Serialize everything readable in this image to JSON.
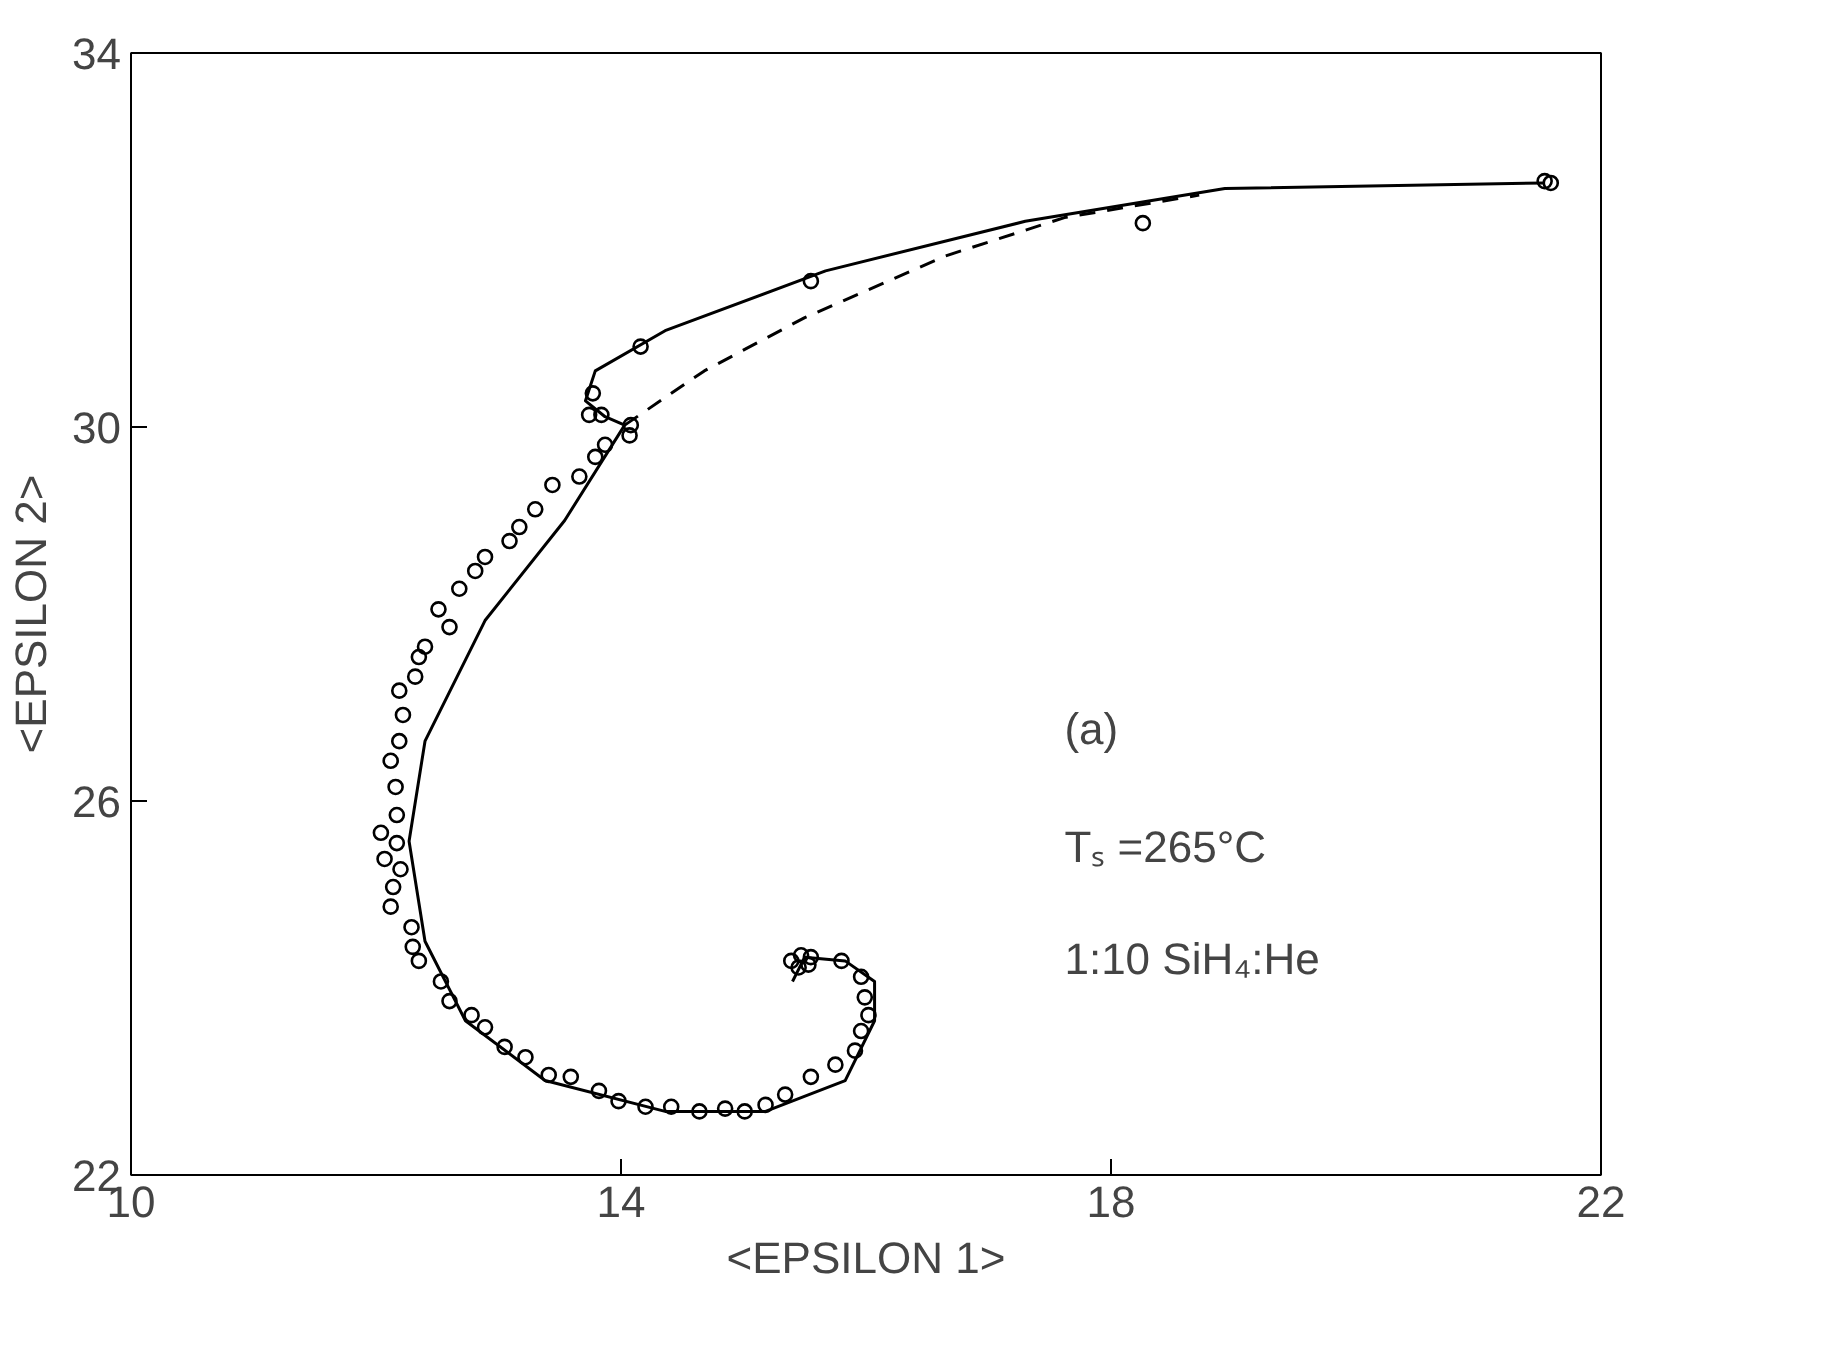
{
  "chart_data": {
    "type": "scatter",
    "xlabel": "<EPSILON 1>",
    "ylabel": "<EPSILON 2>",
    "xlim": [
      10,
      22
    ],
    "ylim": [
      22,
      34
    ],
    "xticks": [
      10,
      14,
      18,
      22
    ],
    "yticks": [
      22,
      26,
      30,
      34
    ],
    "grid": false,
    "annotations": [
      "(a)",
      "Tₛ =265°C",
      "1:10  SiH₄:He"
    ],
    "series": [
      {
        "marker": "circle",
        "color": "#000000",
        "x": [
          21.54,
          21.59,
          18.26,
          15.55,
          14.16,
          13.77,
          13.74,
          13.84,
          14.08,
          14.07,
          13.87,
          13.79,
          13.66,
          13.44,
          13.3,
          13.17,
          13.09,
          12.89,
          12.81,
          12.68,
          12.51,
          12.6,
          12.4,
          12.35,
          12.32,
          12.19,
          12.22,
          12.19,
          12.12,
          12.16,
          12.17,
          12.04,
          12.17,
          12.07,
          12.2,
          12.14,
          12.12,
          12.29,
          12.3,
          12.35,
          12.53,
          12.6,
          12.78,
          12.89,
          13.05,
          13.22,
          13.41,
          13.59,
          13.82,
          13.98,
          14.2,
          14.41,
          14.64,
          14.85,
          15.01,
          15.18,
          15.34,
          15.55,
          15.75,
          15.91,
          15.96,
          16.02,
          15.99,
          15.96,
          15.8,
          15.39,
          15.47,
          15.55,
          15.45,
          15.53
        ],
        "values": [
          32.63,
          32.61,
          32.18,
          31.56,
          30.86,
          30.36,
          30.13,
          30.13,
          30.02,
          29.91,
          29.81,
          29.68,
          29.47,
          29.38,
          29.12,
          28.93,
          28.78,
          28.61,
          28.46,
          28.27,
          28.05,
          27.86,
          27.65,
          27.54,
          27.33,
          27.18,
          26.92,
          26.64,
          26.43,
          26.15,
          25.85,
          25.66,
          25.55,
          25.38,
          25.27,
          25.08,
          24.87,
          24.65,
          24.44,
          24.29,
          24.07,
          23.86,
          23.71,
          23.58,
          23.37,
          23.26,
          23.07,
          23.05,
          22.9,
          22.79,
          22.73,
          22.73,
          22.68,
          22.71,
          22.68,
          22.75,
          22.86,
          23.05,
          23.18,
          23.33,
          23.54,
          23.71,
          23.9,
          24.12,
          24.29,
          24.29,
          24.35,
          24.33,
          24.22,
          24.25
        ]
      },
      {
        "type": "line",
        "line_style": "solid",
        "color": "#000000",
        "x": [
          21.54,
          18.93,
          17.3,
          15.67,
          14.36,
          13.79,
          13.71,
          13.87,
          14.03,
          13.54,
          12.89,
          12.4,
          12.27,
          12.4,
          12.73,
          13.38,
          14.36,
          15.18,
          15.83,
          16.07,
          16.07,
          15.83,
          15.5,
          15.4
        ],
        "values": [
          32.61,
          32.55,
          32.2,
          31.67,
          31.03,
          30.6,
          30.28,
          30.11,
          30.02,
          29.0,
          27.93,
          26.64,
          25.57,
          24.5,
          23.65,
          23.01,
          22.68,
          22.68,
          23.01,
          23.65,
          24.07,
          24.29,
          24.33,
          24.07
        ]
      },
      {
        "type": "line",
        "line_style": "dashed",
        "color": "#000000",
        "x": [
          14.03,
          14.68,
          15.5,
          16.65,
          17.62,
          18.72
        ],
        "values": [
          30.02,
          30.6,
          31.17,
          31.83,
          32.24,
          32.48
        ]
      }
    ]
  }
}
